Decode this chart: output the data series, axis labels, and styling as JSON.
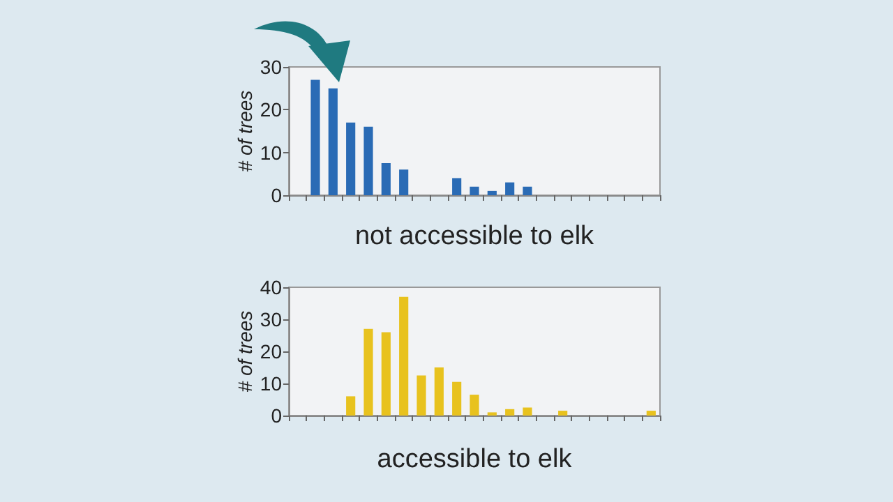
{
  "chart_data": [
    {
      "type": "bar",
      "xlabel": "not accessible to elk",
      "ylabel": "# of trees",
      "categories": [
        null,
        null,
        null,
        null,
        null,
        null,
        null,
        null,
        null,
        null,
        null,
        null,
        null,
        null,
        null,
        null,
        null,
        null,
        null,
        null,
        null
      ],
      "values": [
        0,
        27,
        25,
        17,
        16,
        7.5,
        6,
        0,
        0,
        4,
        2,
        1,
        3,
        2,
        0,
        0,
        0,
        0,
        0,
        0,
        0
      ],
      "color": "#2a6bb5",
      "ylim": [
        0,
        30
      ],
      "yticks": [
        0,
        10,
        20,
        30
      ],
      "grid": false
    },
    {
      "type": "bar",
      "xlabel": "accessible to elk",
      "ylabel": "# of trees",
      "categories": [
        null,
        null,
        null,
        null,
        null,
        null,
        null,
        null,
        null,
        null,
        null,
        null,
        null,
        null,
        null,
        null,
        null,
        null,
        null,
        null,
        null
      ],
      "values": [
        0,
        0,
        0,
        6,
        27,
        26,
        37,
        12.5,
        15,
        10.5,
        6.5,
        1,
        2,
        2.5,
        0,
        1.5,
        0,
        0,
        0,
        0,
        1.5
      ],
      "color": "#e8c21e",
      "ylim": [
        0,
        40
      ],
      "yticks": [
        0,
        10,
        20,
        30,
        40
      ],
      "grid": false
    }
  ]
}
